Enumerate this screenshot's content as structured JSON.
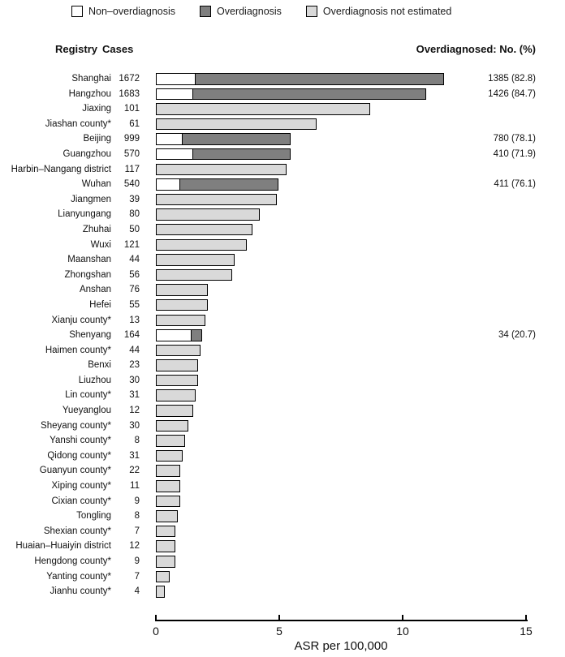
{
  "legend": {
    "items": [
      {
        "label": "Non–overdiagnosis",
        "type": "non_overdiagnosis",
        "color": "#ffffff"
      },
      {
        "label": "Overdiagnosis",
        "type": "overdiagnosis",
        "color": "#7f7f7f"
      },
      {
        "label": "Overdiagnosis not estimated",
        "type": "not_estimated",
        "color": "#d9d9d9"
      }
    ]
  },
  "headers": {
    "registry": "Registry",
    "cases": "Cases",
    "overdiagnosed": "Overdiagnosed: No. (%)"
  },
  "chart_data": {
    "type": "bar",
    "orientation": "horizontal",
    "xlabel": "ASR per 100,000",
    "xlim": [
      0,
      15
    ],
    "xticks": [
      0,
      5,
      10,
      15
    ],
    "grid": false,
    "legend_position": "top",
    "colors": {
      "non_overdiagnosis": "#ffffff",
      "overdiagnosis": "#7f7f7f",
      "not_estimated": "#d9d9d9"
    },
    "rows": [
      {
        "registry": "Shanghai",
        "cases": "1672",
        "overdiagnosed": "1385 (82.8)",
        "segments": [
          {
            "type": "non_overdiagnosis",
            "asr": 1.6
          },
          {
            "type": "overdiagnosis",
            "asr": 10.1
          }
        ]
      },
      {
        "registry": "Hangzhou",
        "cases": "1683",
        "overdiagnosed": "1426 (84.7)",
        "segments": [
          {
            "type": "non_overdiagnosis",
            "asr": 1.5
          },
          {
            "type": "overdiagnosis",
            "asr": 9.5
          }
        ]
      },
      {
        "registry": "Jiaxing",
        "cases": "101",
        "overdiagnosed": "",
        "segments": [
          {
            "type": "not_estimated",
            "asr": 8.7
          }
        ]
      },
      {
        "registry": "Jiashan county*",
        "cases": "61",
        "overdiagnosed": "",
        "segments": [
          {
            "type": "not_estimated",
            "asr": 6.5
          }
        ]
      },
      {
        "registry": "Beijing",
        "cases": "999",
        "overdiagnosed": "780 (78.1)",
        "segments": [
          {
            "type": "non_overdiagnosis",
            "asr": 1.1
          },
          {
            "type": "overdiagnosis",
            "asr": 4.4
          }
        ]
      },
      {
        "registry": "Guangzhou",
        "cases": "570",
        "overdiagnosed": "410 (71.9)",
        "segments": [
          {
            "type": "non_overdiagnosis",
            "asr": 1.5
          },
          {
            "type": "overdiagnosis",
            "asr": 4.0
          }
        ]
      },
      {
        "registry": "Harbin–Nangang district",
        "cases": "117",
        "overdiagnosed": "",
        "segments": [
          {
            "type": "not_estimated",
            "asr": 5.3
          }
        ]
      },
      {
        "registry": "Wuhan",
        "cases": "540",
        "overdiagnosed": "411 (76.1)",
        "segments": [
          {
            "type": "non_overdiagnosis",
            "asr": 1.0
          },
          {
            "type": "overdiagnosis",
            "asr": 4.0
          }
        ]
      },
      {
        "registry": "Jiangmen",
        "cases": "39",
        "overdiagnosed": "",
        "segments": [
          {
            "type": "not_estimated",
            "asr": 4.9
          }
        ]
      },
      {
        "registry": "Lianyungang",
        "cases": "80",
        "overdiagnosed": "",
        "segments": [
          {
            "type": "not_estimated",
            "asr": 4.2
          }
        ]
      },
      {
        "registry": "Zhuhai",
        "cases": "50",
        "overdiagnosed": "",
        "segments": [
          {
            "type": "not_estimated",
            "asr": 3.9
          }
        ]
      },
      {
        "registry": "Wuxi",
        "cases": "121",
        "overdiagnosed": "",
        "segments": [
          {
            "type": "not_estimated",
            "asr": 3.7
          }
        ]
      },
      {
        "registry": "Maanshan",
        "cases": "44",
        "overdiagnosed": "",
        "segments": [
          {
            "type": "not_estimated",
            "asr": 3.2
          }
        ]
      },
      {
        "registry": "Zhongshan",
        "cases": "56",
        "overdiagnosed": "",
        "segments": [
          {
            "type": "not_estimated",
            "asr": 3.1
          }
        ]
      },
      {
        "registry": "Anshan",
        "cases": "76",
        "overdiagnosed": "",
        "segments": [
          {
            "type": "not_estimated",
            "asr": 2.1
          }
        ]
      },
      {
        "registry": "Hefei",
        "cases": "55",
        "overdiagnosed": "",
        "segments": [
          {
            "type": "not_estimated",
            "asr": 2.1
          }
        ]
      },
      {
        "registry": "Xianju county*",
        "cases": "13",
        "overdiagnosed": "",
        "segments": [
          {
            "type": "not_estimated",
            "asr": 2.0
          }
        ]
      },
      {
        "registry": "Shenyang",
        "cases": "164",
        "overdiagnosed": "34 (20.7)",
        "segments": [
          {
            "type": "non_overdiagnosis",
            "asr": 1.45
          },
          {
            "type": "overdiagnosis",
            "asr": 0.45
          }
        ]
      },
      {
        "registry": "Haimen county*",
        "cases": "44",
        "overdiagnosed": "",
        "segments": [
          {
            "type": "not_estimated",
            "asr": 1.8
          }
        ]
      },
      {
        "registry": "Benxi",
        "cases": "23",
        "overdiagnosed": "",
        "segments": [
          {
            "type": "not_estimated",
            "asr": 1.7
          }
        ]
      },
      {
        "registry": "Liuzhou",
        "cases": "30",
        "overdiagnosed": "",
        "segments": [
          {
            "type": "not_estimated",
            "asr": 1.7
          }
        ]
      },
      {
        "registry": "Lin county*",
        "cases": "31",
        "overdiagnosed": "",
        "segments": [
          {
            "type": "not_estimated",
            "asr": 1.6
          }
        ]
      },
      {
        "registry": "Yueyanglou",
        "cases": "12",
        "overdiagnosed": "",
        "segments": [
          {
            "type": "not_estimated",
            "asr": 1.5
          }
        ]
      },
      {
        "registry": "Sheyang county*",
        "cases": "30",
        "overdiagnosed": "",
        "segments": [
          {
            "type": "not_estimated",
            "asr": 1.3
          }
        ]
      },
      {
        "registry": "Yanshi county*",
        "cases": "8",
        "overdiagnosed": "",
        "segments": [
          {
            "type": "not_estimated",
            "asr": 1.2
          }
        ]
      },
      {
        "registry": "Qidong county*",
        "cases": "31",
        "overdiagnosed": "",
        "segments": [
          {
            "type": "not_estimated",
            "asr": 1.1
          }
        ]
      },
      {
        "registry": "Guanyun county*",
        "cases": "22",
        "overdiagnosed": "",
        "segments": [
          {
            "type": "not_estimated",
            "asr": 1.0
          }
        ]
      },
      {
        "registry": "Xiping county*",
        "cases": "11",
        "overdiagnosed": "",
        "segments": [
          {
            "type": "not_estimated",
            "asr": 1.0
          }
        ]
      },
      {
        "registry": "Cixian county*",
        "cases": "9",
        "overdiagnosed": "",
        "segments": [
          {
            "type": "not_estimated",
            "asr": 1.0
          }
        ]
      },
      {
        "registry": "Tongling",
        "cases": "8",
        "overdiagnosed": "",
        "segments": [
          {
            "type": "not_estimated",
            "asr": 0.9
          }
        ]
      },
      {
        "registry": "Shexian county*",
        "cases": "7",
        "overdiagnosed": "",
        "segments": [
          {
            "type": "not_estimated",
            "asr": 0.8
          }
        ]
      },
      {
        "registry": "Huaian–Huaiyin district",
        "cases": "12",
        "overdiagnosed": "",
        "segments": [
          {
            "type": "not_estimated",
            "asr": 0.8
          }
        ]
      },
      {
        "registry": "Hengdong county*",
        "cases": "9",
        "overdiagnosed": "",
        "segments": [
          {
            "type": "not_estimated",
            "asr": 0.8
          }
        ]
      },
      {
        "registry": "Yanting county*",
        "cases": "7",
        "overdiagnosed": "",
        "segments": [
          {
            "type": "not_estimated",
            "asr": 0.55
          }
        ]
      },
      {
        "registry": "Jianhu county*",
        "cases": "4",
        "overdiagnosed": "",
        "segments": [
          {
            "type": "not_estimated",
            "asr": 0.35
          }
        ]
      }
    ]
  }
}
